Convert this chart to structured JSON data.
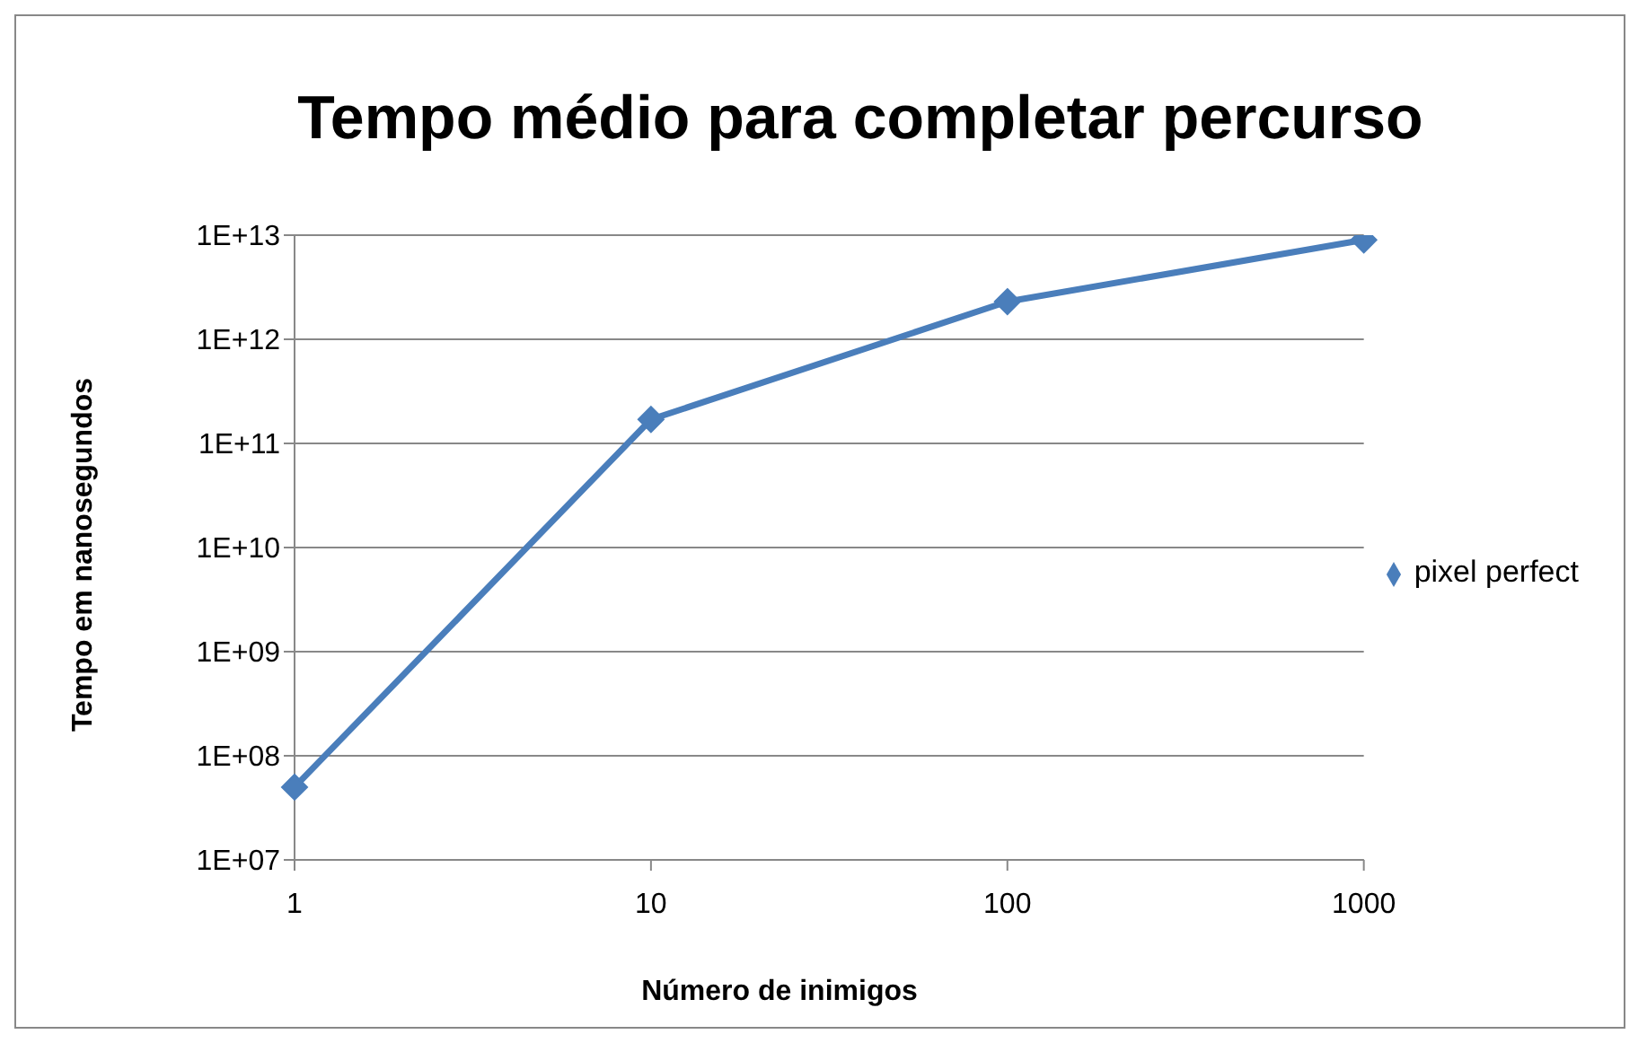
{
  "chart_data": {
    "type": "line",
    "title": "Tempo médio para completar percurso",
    "xlabel": "Número de inimigos",
    "ylabel": "Tempo em nanosegundos",
    "categories": [
      "1",
      "10",
      "100",
      "1000"
    ],
    "series": [
      {
        "name": "pixel perfect",
        "color": "#4a7ebb",
        "values": [
          50000000.0,
          170000000000.0,
          2300000000000.0,
          9000000000000.0
        ]
      }
    ],
    "log": "y",
    "ylim": [
      10000000.0,
      10000000000000.0
    ],
    "yticks": [
      {
        "value": 10000000.0,
        "label": "1E+07"
      },
      {
        "value": 100000000.0,
        "label": "1E+08"
      },
      {
        "value": 1000000000.0,
        "label": "1E+09"
      },
      {
        "value": 10000000000.0,
        "label": "1E+10"
      },
      {
        "value": 100000000000.0,
        "label": "1E+11"
      },
      {
        "value": 1000000000000.0,
        "label": "1E+12"
      },
      {
        "value": 10000000000000.0,
        "label": "1E+13"
      }
    ],
    "grid": "y",
    "legend": "right",
    "marker": "diamond",
    "line_style": "solid"
  }
}
